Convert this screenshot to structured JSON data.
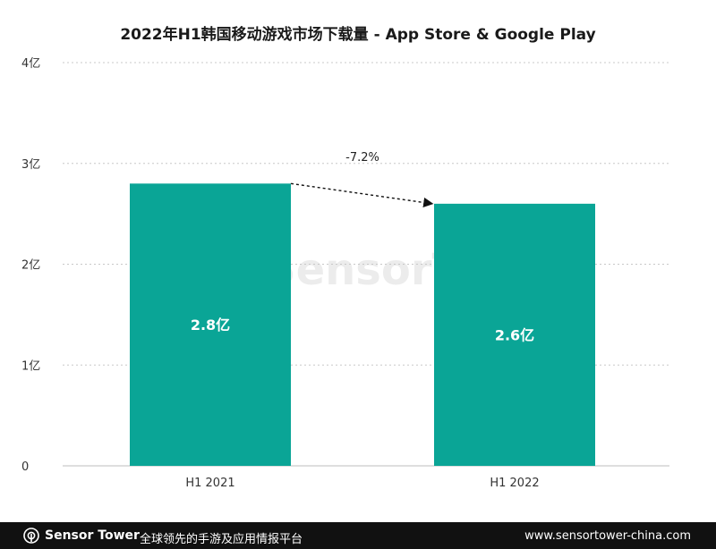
{
  "chart_data": {
    "type": "bar",
    "title": "2022年H1韩国移动游戏市场下载量 - App Store & Google Play",
    "categories": [
      "H1 2021",
      "H1 2022"
    ],
    "values": [
      2.8,
      2.6
    ],
    "value_labels": [
      "2.8亿",
      "2.6亿"
    ],
    "ylim": [
      0,
      4
    ],
    "yticks": [
      0,
      1,
      2,
      3,
      4
    ],
    "ytick_labels": [
      "0",
      "1亿",
      "2亿",
      "3亿",
      "4亿"
    ],
    "annotation": {
      "text": "-7.2%",
      "from": "H1 2021",
      "to": "H1 2022"
    },
    "grid": true,
    "bar_color": "#0aa596"
  },
  "watermark": {
    "text": "SensorTower"
  },
  "footer": {
    "brand": "Sensor Tower",
    "tagline": "全球领先的手游及应用情报平台",
    "url": "www.sensortower-china.com"
  }
}
